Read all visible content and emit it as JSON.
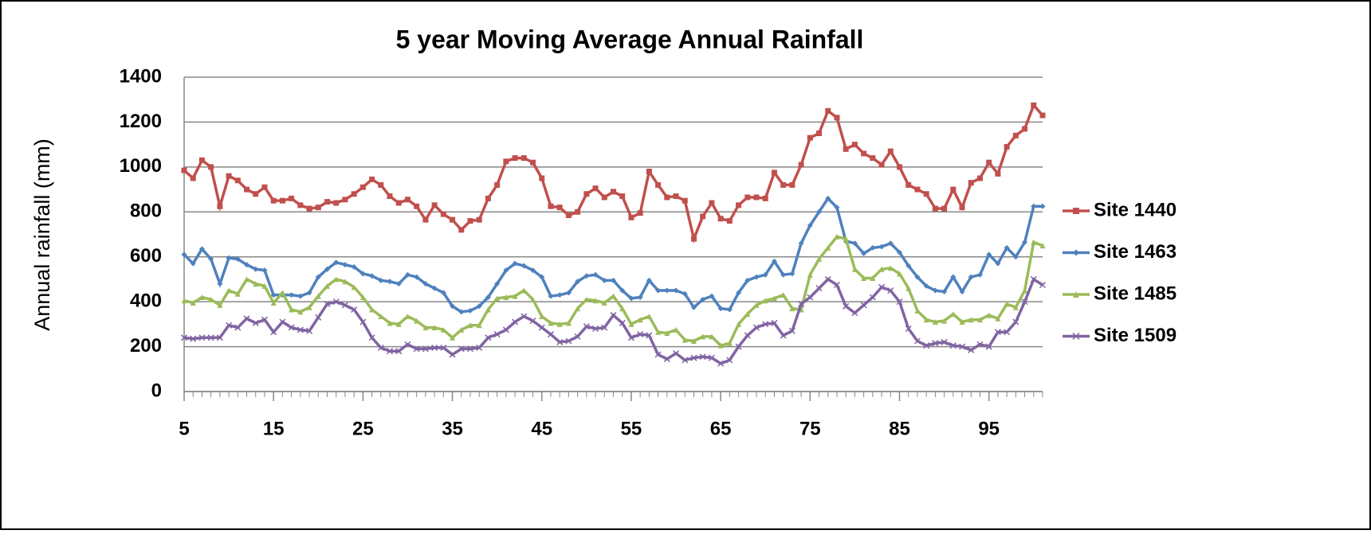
{
  "chart_data": {
    "type": "line",
    "title": "5 year Moving Average Annual Rainfall",
    "y_label": "Annual rainfall (mm)",
    "x": [
      5,
      6,
      7,
      8,
      9,
      10,
      11,
      12,
      13,
      14,
      15,
      16,
      17,
      18,
      19,
      20,
      21,
      22,
      23,
      24,
      25,
      26,
      27,
      28,
      29,
      30,
      31,
      32,
      33,
      34,
      35,
      36,
      37,
      38,
      39,
      40,
      41,
      42,
      43,
      44,
      45,
      46,
      47,
      48,
      49,
      50,
      51,
      52,
      53,
      54,
      55,
      56,
      57,
      58,
      59,
      60,
      61,
      62,
      63,
      64,
      65,
      66,
      67,
      68,
      69,
      70,
      71,
      72,
      73,
      74,
      75,
      76,
      77,
      78,
      79,
      80,
      81,
      82,
      83,
      84,
      85,
      86,
      87,
      88,
      89,
      90,
      91,
      92,
      93,
      94,
      95,
      96,
      97,
      98,
      99,
      100,
      101
    ],
    "xlim": [
      5,
      101
    ],
    "xticks": [
      5,
      15,
      25,
      35,
      45,
      55,
      65,
      75,
      85,
      95
    ],
    "ylim": [
      0,
      1400
    ],
    "yticks": [
      0,
      200,
      400,
      600,
      800,
      1000,
      1200,
      1400
    ],
    "grid": true,
    "legend": "right",
    "series": [
      {
        "name": "Site 1440",
        "color": "#c0504d",
        "marker": "square",
        "values": [
          985,
          950,
          1030,
          1000,
          825,
          960,
          940,
          900,
          880,
          910,
          850,
          850,
          860,
          830,
          815,
          820,
          845,
          840,
          855,
          880,
          910,
          945,
          920,
          870,
          840,
          855,
          825,
          765,
          830,
          790,
          765,
          720,
          760,
          765,
          860,
          920,
          1025,
          1040,
          1040,
          1020,
          950,
          825,
          820,
          785,
          800,
          880,
          905,
          865,
          890,
          870,
          775,
          795,
          980,
          920,
          865,
          870,
          850,
          680,
          780,
          840,
          770,
          760,
          830,
          865,
          865,
          860,
          975,
          920,
          920,
          1010,
          1130,
          1150,
          1250,
          1220,
          1080,
          1100,
          1060,
          1040,
          1010,
          1070,
          1000,
          920,
          900,
          880,
          815,
          815,
          900,
          820,
          930,
          950,
          1020,
          970,
          1090,
          1140,
          1170,
          1275,
          1230
        ]
      },
      {
        "name": "Site 1463",
        "color": "#4f81bd",
        "marker": "diamond",
        "values": [
          610,
          570,
          635,
          590,
          480,
          595,
          590,
          565,
          545,
          540,
          430,
          430,
          430,
          425,
          440,
          510,
          545,
          575,
          565,
          555,
          525,
          515,
          495,
          490,
          480,
          520,
          510,
          480,
          460,
          440,
          380,
          355,
          360,
          380,
          420,
          480,
          540,
          570,
          560,
          540,
          510,
          425,
          430,
          440,
          490,
          515,
          520,
          495,
          495,
          450,
          415,
          420,
          495,
          450,
          450,
          450,
          435,
          375,
          410,
          425,
          370,
          365,
          440,
          495,
          510,
          520,
          580,
          520,
          525,
          660,
          740,
          800,
          860,
          820,
          670,
          660,
          615,
          640,
          645,
          660,
          620,
          560,
          510,
          470,
          450,
          445,
          510,
          445,
          510,
          520,
          610,
          570,
          640,
          600,
          665,
          825,
          825
        ]
      },
      {
        "name": "Site 1485",
        "color": "#9bbb59",
        "marker": "triangle",
        "values": [
          405,
          395,
          420,
          410,
          385,
          450,
          435,
          500,
          480,
          470,
          395,
          440,
          365,
          355,
          375,
          425,
          470,
          500,
          490,
          465,
          420,
          365,
          335,
          305,
          300,
          335,
          315,
          285,
          285,
          275,
          240,
          275,
          295,
          295,
          365,
          415,
          420,
          425,
          450,
          410,
          335,
          305,
          300,
          305,
          370,
          410,
          405,
          395,
          425,
          370,
          300,
          320,
          335,
          265,
          260,
          275,
          230,
          225,
          245,
          245,
          205,
          215,
          300,
          345,
          385,
          405,
          415,
          430,
          370,
          365,
          520,
          590,
          640,
          690,
          680,
          545,
          505,
          505,
          545,
          550,
          525,
          460,
          360,
          320,
          310,
          315,
          345,
          310,
          320,
          320,
          340,
          325,
          390,
          375,
          450,
          665,
          650
        ]
      },
      {
        "name": "Site 1509",
        "color": "#8064a2",
        "marker": "x",
        "values": [
          240,
          235,
          240,
          240,
          240,
          295,
          285,
          325,
          305,
          320,
          265,
          310,
          285,
          275,
          270,
          330,
          390,
          400,
          385,
          365,
          310,
          240,
          195,
          180,
          180,
          210,
          190,
          190,
          195,
          195,
          165,
          190,
          190,
          195,
          240,
          255,
          275,
          310,
          335,
          315,
          285,
          255,
          220,
          225,
          245,
          290,
          280,
          285,
          340,
          305,
          240,
          255,
          250,
          165,
          145,
          170,
          140,
          150,
          155,
          150,
          125,
          140,
          200,
          250,
          285,
          300,
          305,
          250,
          270,
          390,
          420,
          460,
          500,
          475,
          380,
          350,
          385,
          420,
          465,
          450,
          400,
          280,
          225,
          205,
          215,
          220,
          205,
          200,
          185,
          210,
          200,
          265,
          265,
          310,
          400,
          500,
          475
        ]
      }
    ]
  }
}
